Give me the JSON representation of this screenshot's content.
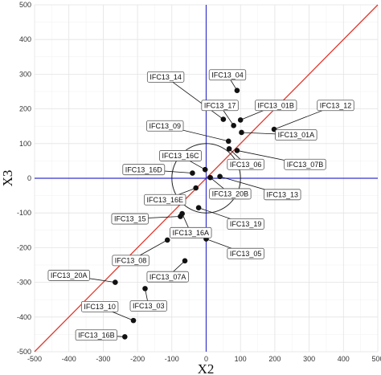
{
  "chart_data": {
    "type": "scatter",
    "title": "",
    "xlabel": "X2",
    "ylabel": "X3",
    "xlim": [
      -500,
      500
    ],
    "ylim": [
      -500,
      500
    ],
    "xticks": [
      -500,
      -400,
      -300,
      -200,
      -100,
      0,
      100,
      200,
      300,
      400,
      500
    ],
    "yticks": [
      -500,
      -400,
      -300,
      -200,
      -100,
      0,
      100,
      200,
      300,
      400,
      500
    ],
    "grid": true,
    "reference_lines": {
      "identity_line_color": "#e03a2f",
      "zero_axes_color": "#3333cc",
      "circle_center": [
        0,
        0
      ],
      "circle_radius": 100
    },
    "points": [
      {
        "label": "IFC13_04",
        "x": 90,
        "y": 253,
        "lx": 62,
        "ly": 298
      },
      {
        "label": "IFC13_14",
        "x": 50,
        "y": 170,
        "lx": -118,
        "ly": 292
      },
      {
        "label": "IFC13_17",
        "x": 80,
        "y": 152,
        "lx": 40,
        "ly": 210
      },
      {
        "label": "IFC13_01B",
        "x": 100,
        "y": 168,
        "lx": 203,
        "ly": 210
      },
      {
        "label": "IFC13_12",
        "x": 198,
        "y": 141,
        "lx": 377,
        "ly": 210
      },
      {
        "label": "IFC13_09",
        "x": 65,
        "y": 107,
        "lx": -120,
        "ly": 151
      },
      {
        "label": "IFC13_01A",
        "x": 103,
        "y": 132,
        "lx": 262,
        "ly": 125
      },
      {
        "label": "IFC13_06",
        "x": 67,
        "y": 85,
        "lx": 115,
        "ly": 40
      },
      {
        "label": "IFC13_07B",
        "x": 90,
        "y": 80,
        "lx": 288,
        "ly": 40
      },
      {
        "label": "IFC13_16C",
        "x": -3,
        "y": 25,
        "lx": -75,
        "ly": 65
      },
      {
        "label": "IFC13_16D",
        "x": -40,
        "y": 15,
        "lx": -182,
        "ly": 25
      },
      {
        "label": "IFC13_20B",
        "x": 12,
        "y": 2,
        "lx": 70,
        "ly": -45
      },
      {
        "label": "IFC13_13",
        "x": 40,
        "y": 5,
        "lx": 222,
        "ly": -47
      },
      {
        "label": "IFC13_16E",
        "x": -30,
        "y": -28,
        "lx": -120,
        "ly": -62
      },
      {
        "label": "IFC13_19",
        "x": -22,
        "y": -85,
        "lx": 115,
        "ly": -132
      },
      {
        "label": "IFC13_15",
        "x": -75,
        "y": -110,
        "lx": -222,
        "ly": -117
      },
      {
        "label": "IFC13_16A",
        "x": -70,
        "y": -102,
        "lx": -45,
        "ly": -157
      },
      {
        "label": "IFC13_05",
        "x": 0,
        "y": -175,
        "lx": 115,
        "ly": -217
      },
      {
        "label": "IFC13_08",
        "x": -113,
        "y": -178,
        "lx": -220,
        "ly": -237
      },
      {
        "label": "IFC13_07A",
        "x": -62,
        "y": -238,
        "lx": -112,
        "ly": -284
      },
      {
        "label": "IFC13_20A",
        "x": -265,
        "y": -300,
        "lx": -400,
        "ly": -280
      },
      {
        "label": "IFC13_03",
        "x": -178,
        "y": -318,
        "lx": -168,
        "ly": -368
      },
      {
        "label": "IFC13_10",
        "x": -212,
        "y": -410,
        "lx": -310,
        "ly": -370
      },
      {
        "label": "IFC13_16B",
        "x": -237,
        "y": -457,
        "lx": -320,
        "ly": -452
      }
    ]
  },
  "colors": {
    "point": "#111111",
    "label_border": "#555555"
  }
}
